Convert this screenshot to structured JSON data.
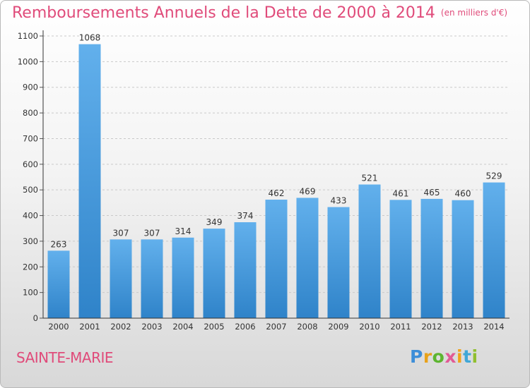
{
  "header": {
    "title": "Remboursements Annuels de la Dette de 2000 à 2014",
    "subtitle": "(en milliers d'€)"
  },
  "footer": {
    "commune": "SAINTE-MARIE",
    "logo": "Proxiti"
  },
  "colors": {
    "title": "#e04b7a",
    "bar_top": "#62b0ec",
    "bar_bottom": "#2f83c9"
  },
  "chart_data": {
    "type": "bar",
    "title": "Remboursements Annuels de la Dette de 2000 à 2014",
    "subtitle": "(en milliers d'€)",
    "xlabel": "",
    "ylabel": "",
    "categories": [
      "2000",
      "2001",
      "2002",
      "2003",
      "2004",
      "2005",
      "2006",
      "2007",
      "2008",
      "2009",
      "2010",
      "2011",
      "2012",
      "2013",
      "2014"
    ],
    "values": [
      263,
      1068,
      307,
      307,
      314,
      349,
      374,
      462,
      469,
      433,
      521,
      461,
      465,
      460,
      529
    ],
    "ylim": [
      0,
      1100
    ],
    "yticks": [
      0,
      100,
      200,
      300,
      400,
      500,
      600,
      700,
      800,
      900,
      1000,
      1100
    ],
    "grid": true,
    "legend": "none"
  }
}
